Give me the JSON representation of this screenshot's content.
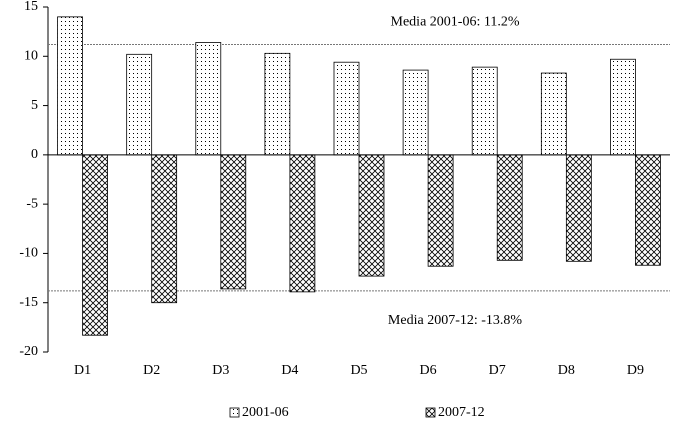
{
  "chart_data": {
    "type": "bar",
    "categories": [
      "D1",
      "D2",
      "D3",
      "D4",
      "D5",
      "D6",
      "D7",
      "D8",
      "D9"
    ],
    "series": [
      {
        "name": "2001-06",
        "color": "#000000",
        "pattern": "dots",
        "values": [
          14.0,
          10.2,
          11.4,
          10.3,
          9.4,
          8.6,
          8.9,
          8.3,
          9.7
        ]
      },
      {
        "name": "2007-12",
        "color": "#000000",
        "pattern": "crosshatch",
        "values": [
          -18.3,
          -15.0,
          -13.6,
          -13.9,
          -12.3,
          -11.3,
          -10.7,
          -10.8,
          -11.2
        ]
      }
    ],
    "ylim": [
      -20,
      15
    ],
    "yticks": [
      -20,
      -15,
      -10,
      -5,
      0,
      5,
      10,
      15
    ],
    "annotations": [
      {
        "text": "Media 2001-06: 11.2%",
        "value": 11.2
      },
      {
        "text": "Media 2007-12: -13.8%",
        "value": -13.8
      }
    ],
    "legend": "bottom"
  }
}
